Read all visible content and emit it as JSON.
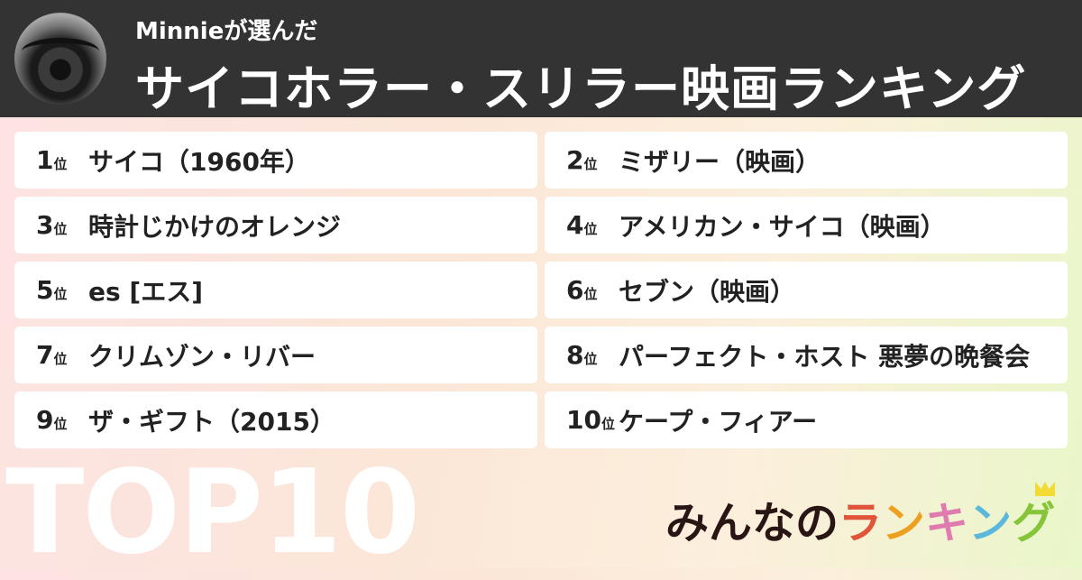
{
  "header": {
    "byline": "Minnieが選んだ",
    "title": "サイコホラー・スリラー映画ランキング"
  },
  "ranking": [
    {
      "rank": "1",
      "unit": "位",
      "name": "サイコ（1960年）"
    },
    {
      "rank": "2",
      "unit": "位",
      "name": "ミザリー（映画）"
    },
    {
      "rank": "3",
      "unit": "位",
      "name": "時計じかけのオレンジ"
    },
    {
      "rank": "4",
      "unit": "位",
      "name": "アメリカン・サイコ（映画）"
    },
    {
      "rank": "5",
      "unit": "位",
      "name": "es [エス]"
    },
    {
      "rank": "6",
      "unit": "位",
      "name": "セブン（映画）"
    },
    {
      "rank": "7",
      "unit": "位",
      "name": "クリムゾン・リバー"
    },
    {
      "rank": "8",
      "unit": "位",
      "name": "パーフェクト・ホスト 悪夢の晩餐会"
    },
    {
      "rank": "9",
      "unit": "位",
      "name": "ザ・ギフト（2015）"
    },
    {
      "rank": "10",
      "unit": "位",
      "name": "ケープ・フィアー"
    }
  ],
  "footer": {
    "top_label": "TOP10",
    "logo": {
      "part1": "みんなの",
      "chars": [
        "ラ",
        "ン",
        "キ",
        "ン",
        "グ"
      ],
      "colors": [
        "#e0543a",
        "#eda020",
        "#e07bb0",
        "#5bb8dc",
        "#86c43a"
      ]
    }
  }
}
